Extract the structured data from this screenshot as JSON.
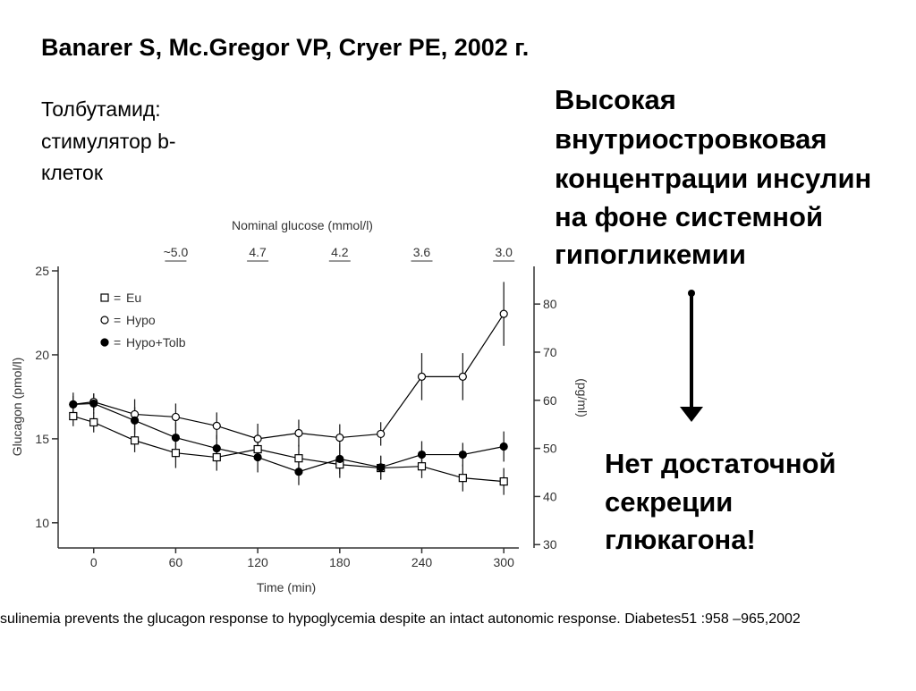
{
  "slide": {
    "title": "Banarer S, Mc.Gregor VP, Cryer PE, 2002 г.",
    "left_text": [
      "Толбутамид:",
      "стимулятор b-",
      "клеток"
    ],
    "right_text": [
      "Высокая",
      "внутриостровковая",
      "концентрации инсулин",
      "на фоне системной",
      "гипогликемии"
    ],
    "conclusion": [
      "Нет  достаточной",
      "секреции",
      "глюкагона!"
    ],
    "footer": "sulinemia prevents the glucagon response to hypoglycemia despite an intact autonomic response. Diabetes51 :958 –965,2002"
  },
  "chart_data": {
    "type": "line",
    "title": "Nominal glucose (mmol/l)",
    "x_label": "Time (min)",
    "y_label": "Glucagon (pmol/l)",
    "y2_label": "(pg/ml)",
    "x": [
      -15,
      0,
      30,
      60,
      90,
      120,
      150,
      180,
      210,
      240,
      270,
      300
    ],
    "xlim": [
      -26,
      311
    ],
    "xticks": [
      0,
      60,
      120,
      180,
      240,
      300
    ],
    "x2ticks": [
      {
        "value": 60,
        "label": "~5.0"
      },
      {
        "value": 120,
        "label": "4.7"
      },
      {
        "value": 180,
        "label": "4.2"
      },
      {
        "value": 240,
        "label": "3.6"
      },
      {
        "value": 300,
        "label": "3.0"
      }
    ],
    "ylim": [
      8.5,
      25
    ],
    "yticks": [
      10,
      15,
      20,
      25
    ],
    "y2lim": [
      29.3,
      86.9
    ],
    "y2ticks": [
      30,
      40,
      50,
      60,
      70,
      80
    ],
    "legend": "top-left",
    "series": [
      {
        "name": "Eu",
        "color": "#000000",
        "marker": "square",
        "filled": false,
        "values": [
          16.35,
          15.98,
          14.9,
          14.16,
          13.9,
          14.38,
          13.84,
          13.47,
          13.26,
          13.36,
          12.67,
          12.46
        ],
        "errors": [
          0.6,
          0.6,
          0.7,
          0.9,
          0.8,
          0.7,
          0.8,
          0.8,
          0.7,
          0.7,
          0.8,
          0.8
        ]
      },
      {
        "name": "Hypo",
        "color": "#000000",
        "marker": "circle",
        "filled": false,
        "values": [
          17.05,
          17.2,
          16.46,
          16.3,
          15.77,
          15.0,
          15.34,
          15.07,
          15.29,
          18.7,
          18.7,
          22.44
        ],
        "errors": [
          0.5,
          0.5,
          0.9,
          0.8,
          0.8,
          0.9,
          0.8,
          0.8,
          0.7,
          1.4,
          1.4,
          1.9
        ]
      },
      {
        "name": "Hypo+Tolb",
        "color": "#000000",
        "marker": "circle",
        "filled": true,
        "values": [
          17.05,
          17.1,
          16.09,
          15.07,
          14.43,
          13.9,
          13.04,
          13.8,
          13.3,
          14.06,
          14.06,
          14.54
        ],
        "errors": [
          0.7,
          0.6,
          0.8,
          0.9,
          0.8,
          0.9,
          0.8,
          0.9,
          0.7,
          0.8,
          0.7,
          0.9
        ]
      }
    ]
  }
}
